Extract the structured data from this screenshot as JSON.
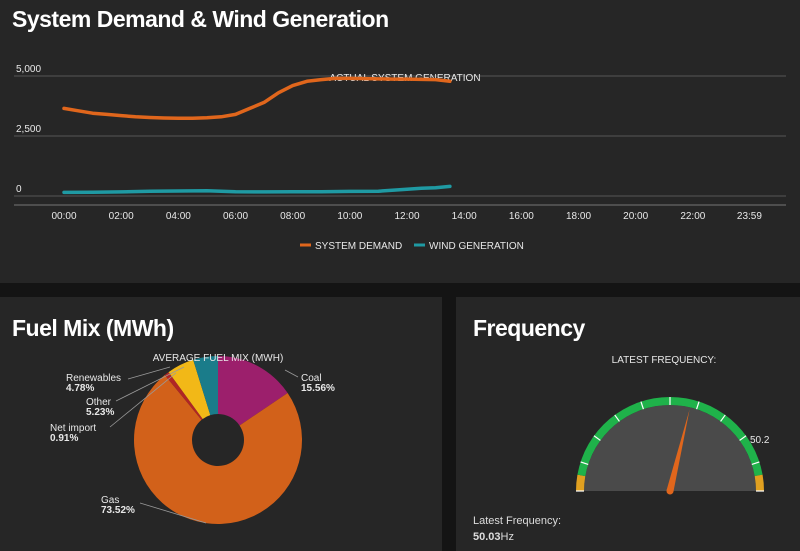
{
  "demand_panel": {
    "title": "System Demand & Wind Generation"
  },
  "fuel_panel": {
    "title": "Fuel Mix (MWh)"
  },
  "freq_panel": {
    "title": "Frequency",
    "gauge_title": "LATEST FREQUENCY:",
    "gauge_max_label": "50.2",
    "latest_label": "Latest Frequency:",
    "latest_value": "50.03",
    "latest_unit": "Hz",
    "gauge_range": [
      49.8,
      50.2
    ],
    "value": 50.03
  },
  "colors": {
    "demand": "#e0661c",
    "wind": "#1f9aa3",
    "gas": "#d2611a",
    "coal": "#9c1f6c",
    "other": "#f2b817",
    "renewables": "#1a7c8a",
    "net_import": "#b02525"
  },
  "chart_data": [
    {
      "type": "line",
      "annotation": "ACTUAL SYSTEM GENERATION",
      "x_ticks": [
        "00:00",
        "02:00",
        "04:00",
        "06:00",
        "08:00",
        "10:00",
        "12:00",
        "14:00",
        "16:00",
        "18:00",
        "20:00",
        "22:00",
        "23:59"
      ],
      "y_ticks": [
        "0",
        "2,500",
        "5,000"
      ],
      "ylim": [
        0,
        5000
      ],
      "xlim_hours": [
        0,
        24
      ],
      "grid": true,
      "legend_position": "bottom-center",
      "series": [
        {
          "name": "SYSTEM DEMAND",
          "x_hours": [
            0,
            0.5,
            1,
            1.5,
            2,
            2.5,
            3,
            3.5,
            4,
            4.5,
            5,
            5.5,
            6,
            6.5,
            7,
            7.5,
            8,
            8.5,
            9,
            9.5,
            10,
            10.5,
            11,
            11.5,
            12,
            12.5,
            13,
            13.5
          ],
          "values": [
            3650,
            3550,
            3450,
            3400,
            3350,
            3300,
            3270,
            3250,
            3240,
            3240,
            3260,
            3300,
            3400,
            3650,
            3900,
            4300,
            4600,
            4780,
            4850,
            4900,
            4900,
            4890,
            4880,
            4870,
            4870,
            4860,
            4850,
            4780
          ]
        },
        {
          "name": "WIND GENERATION",
          "x_hours": [
            0,
            1,
            2,
            3,
            4,
            5,
            6,
            7,
            8,
            9,
            10,
            11,
            12,
            12.5,
            13,
            13.5
          ],
          "values": [
            150,
            160,
            170,
            200,
            210,
            220,
            180,
            170,
            180,
            180,
            190,
            200,
            280,
            320,
            340,
            400
          ]
        }
      ]
    },
    {
      "type": "pie",
      "title": "AVERAGE FUEL MIX (MWH)",
      "donut": true,
      "slices": [
        {
          "label": "Coal",
          "value": 15.56,
          "value_text": "15.56%"
        },
        {
          "label": "Gas",
          "value": 73.52,
          "value_text": "73.52%"
        },
        {
          "label": "Net import",
          "value": 0.91,
          "value_text": "0.91%"
        },
        {
          "label": "Other",
          "value": 5.23,
          "value_text": "5.23%"
        },
        {
          "label": "Renewables",
          "value": 4.78,
          "value_text": "4.78%"
        }
      ]
    }
  ]
}
